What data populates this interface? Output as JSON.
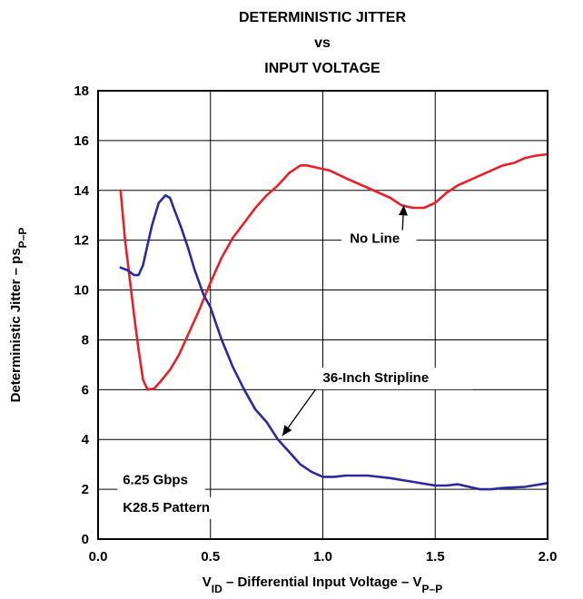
{
  "chart_data": {
    "type": "line",
    "title_lines": [
      "DETERMINISTIC JITTER",
      "vs",
      "INPUT VOLTAGE"
    ],
    "xlabel": {
      "main": "V",
      "sub": "ID",
      "rest": " – Differential Input Voltage – V",
      "sub2": "P–P"
    },
    "ylabel": {
      "main": "Deterministic Jitter – ps",
      "sub": "P–P"
    },
    "xlim": [
      0.0,
      2.0
    ],
    "ylim": [
      0,
      18
    ],
    "x_ticks": [
      0.0,
      0.5,
      1.0,
      1.5,
      2.0
    ],
    "x_tick_labels": [
      "0.0",
      "0.5",
      "1.0",
      "1.5",
      "2.0"
    ],
    "y_ticks": [
      0,
      2,
      4,
      6,
      8,
      10,
      12,
      14,
      16,
      18
    ],
    "y_tick_labels": [
      "0",
      "2",
      "4",
      "6",
      "8",
      "10",
      "12",
      "14",
      "16",
      "18"
    ],
    "grid": true,
    "series": [
      {
        "name": "No Line",
        "color": "#e8202a",
        "x": [
          0.1,
          0.12,
          0.14,
          0.16,
          0.18,
          0.2,
          0.22,
          0.25,
          0.28,
          0.32,
          0.36,
          0.4,
          0.45,
          0.5,
          0.55,
          0.6,
          0.65,
          0.7,
          0.75,
          0.8,
          0.85,
          0.9,
          0.93,
          0.98,
          1.03,
          1.1,
          1.2,
          1.3,
          1.35,
          1.4,
          1.45,
          1.5,
          1.55,
          1.6,
          1.65,
          1.7,
          1.75,
          1.8,
          1.85,
          1.9,
          1.95,
          2.0
        ],
        "y": [
          14.0,
          12.0,
          10.5,
          9.0,
          7.6,
          6.4,
          6.0,
          6.05,
          6.35,
          6.8,
          7.4,
          8.2,
          9.2,
          10.3,
          11.3,
          12.1,
          12.7,
          13.3,
          13.8,
          14.2,
          14.7,
          15.0,
          15.0,
          14.9,
          14.8,
          14.5,
          14.1,
          13.7,
          13.4,
          13.3,
          13.3,
          13.5,
          13.9,
          14.2,
          14.4,
          14.6,
          14.8,
          15.0,
          15.1,
          15.3,
          15.4,
          15.45
        ]
      },
      {
        "name": "36-Inch Stripline",
        "color": "#2b2a9e",
        "x": [
          0.1,
          0.13,
          0.16,
          0.18,
          0.2,
          0.22,
          0.24,
          0.27,
          0.3,
          0.32,
          0.34,
          0.37,
          0.4,
          0.43,
          0.47,
          0.5,
          0.55,
          0.6,
          0.65,
          0.7,
          0.75,
          0.8,
          0.85,
          0.9,
          0.95,
          1.0,
          1.05,
          1.1,
          1.2,
          1.3,
          1.4,
          1.5,
          1.55,
          1.6,
          1.65,
          1.7,
          1.75,
          1.8,
          1.9,
          2.0
        ],
        "y": [
          10.9,
          10.8,
          10.6,
          10.6,
          11.0,
          11.8,
          12.6,
          13.5,
          13.8,
          13.7,
          13.2,
          12.5,
          11.7,
          10.8,
          9.8,
          9.3,
          8.0,
          6.9,
          6.0,
          5.2,
          4.7,
          4.0,
          3.5,
          3.0,
          2.7,
          2.5,
          2.5,
          2.55,
          2.55,
          2.45,
          2.3,
          2.15,
          2.15,
          2.2,
          2.1,
          2.0,
          2.0,
          2.05,
          2.1,
          2.25
        ]
      }
    ],
    "annotations": [
      {
        "text": "No Line",
        "x": 1.12,
        "y": 11.9,
        "arrow_to": [
          1.36,
          13.4
        ]
      },
      {
        "text": "36-Inch Stripline",
        "x": 1.0,
        "y": 6.3,
        "arrow_to": [
          0.82,
          4.15
        ]
      },
      {
        "text": "6.25 Gbps",
        "x": 0.11,
        "y": 2.2
      },
      {
        "text": "K28.5 Pattern",
        "x": 0.11,
        "y": 1.1
      }
    ]
  }
}
